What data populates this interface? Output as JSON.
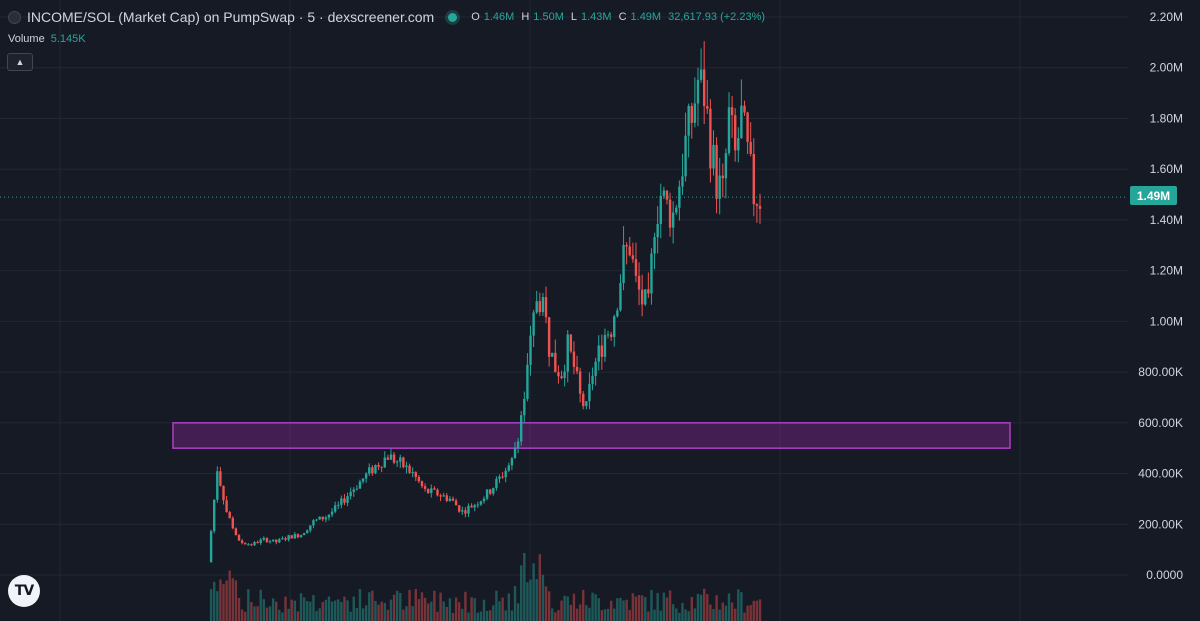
{
  "header": {
    "title": "INCOME/SOL (Market Cap) on PumpSwap · 5 · dexscreener.com",
    "ohlc": [
      {
        "key": "O",
        "value": "1.46M"
      },
      {
        "key": "H",
        "value": "1.50M"
      },
      {
        "key": "L",
        "value": "1.43M"
      },
      {
        "key": "C",
        "value": "1.49M"
      }
    ],
    "change": "32,617.93 (+2.23%)"
  },
  "volume_legend": {
    "label": "Volume",
    "value": "5.145K"
  },
  "current_price_label": "1.49M",
  "logo_text": "TV",
  "colors": {
    "up": "#26a69a",
    "down": "#ef5350",
    "zone": "#b03cc8",
    "background": "#161a25"
  },
  "chart_data": {
    "type": "candlestick",
    "y_axis_ticks": [
      "2.20M",
      "2.00M",
      "1.80M",
      "1.60M",
      "1.40M",
      "1.20M",
      "1.00M",
      "800.00K",
      "600.00K",
      "400.00K",
      "200.00K",
      "0.0000"
    ],
    "ylim": [
      0,
      2200000
    ],
    "current_price": 1490000,
    "zone": {
      "y_low": 500000,
      "y_high": 600000
    },
    "series_close_path": [
      [
        0,
        50000
      ],
      [
        3,
        420000
      ],
      [
        6,
        250000
      ],
      [
        10,
        130000
      ],
      [
        14,
        120000
      ],
      [
        18,
        140000
      ],
      [
        22,
        130000
      ],
      [
        26,
        150000
      ],
      [
        30,
        160000
      ],
      [
        34,
        210000
      ],
      [
        38,
        230000
      ],
      [
        42,
        270000
      ],
      [
        46,
        330000
      ],
      [
        50,
        380000
      ],
      [
        54,
        430000
      ],
      [
        58,
        470000
      ],
      [
        62,
        440000
      ],
      [
        66,
        400000
      ],
      [
        70,
        330000
      ],
      [
        74,
        320000
      ],
      [
        78,
        300000
      ],
      [
        82,
        250000
      ],
      [
        86,
        280000
      ],
      [
        90,
        320000
      ],
      [
        94,
        380000
      ],
      [
        98,
        450000
      ],
      [
        100,
        560000
      ],
      [
        102,
        700000
      ],
      [
        104,
        900000
      ],
      [
        106,
        1100000
      ],
      [
        108,
        1080000
      ],
      [
        110,
        900000
      ],
      [
        112,
        820000
      ],
      [
        114,
        800000
      ],
      [
        116,
        900000
      ],
      [
        118,
        820000
      ],
      [
        120,
        700000
      ],
      [
        122,
        650000
      ],
      [
        124,
        800000
      ],
      [
        126,
        870000
      ],
      [
        128,
        950000
      ],
      [
        130,
        980000
      ],
      [
        132,
        1100000
      ],
      [
        134,
        1250000
      ],
      [
        136,
        1300000
      ],
      [
        138,
        1150000
      ],
      [
        140,
        1080000
      ],
      [
        142,
        1050000
      ],
      [
        144,
        1400000
      ],
      [
        146,
        1500000
      ],
      [
        148,
        1450000
      ],
      [
        150,
        1420000
      ],
      [
        152,
        1550000
      ],
      [
        154,
        1700000
      ],
      [
        156,
        1800000
      ],
      [
        158,
        1950000
      ],
      [
        160,
        1900000
      ],
      [
        162,
        1700000
      ],
      [
        164,
        1550000
      ],
      [
        166,
        1500000
      ],
      [
        168,
        1800000
      ],
      [
        170,
        1650000
      ],
      [
        172,
        1800000
      ],
      [
        174,
        1650000
      ],
      [
        176,
        1500000
      ],
      [
        178,
        1490000
      ]
    ]
  }
}
